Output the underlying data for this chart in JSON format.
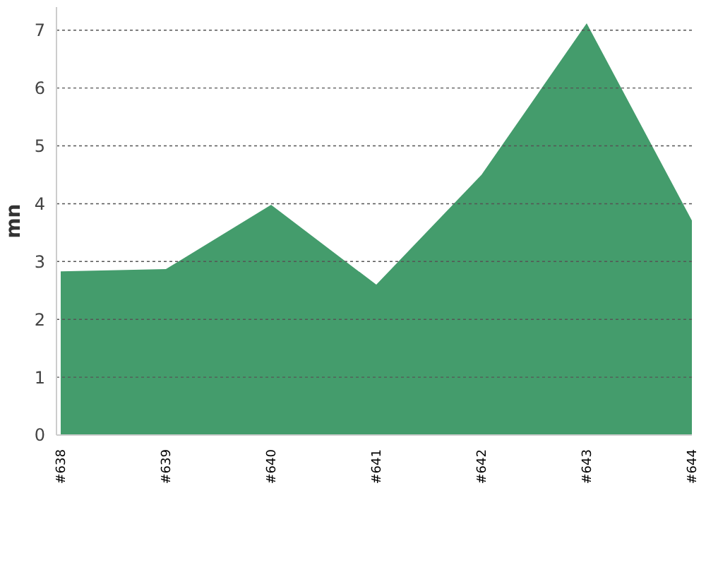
{
  "chart_data": {
    "type": "area",
    "ylabel": "mn",
    "categories": [
      "#638",
      "#639",
      "#640",
      "#641",
      "#642",
      "#643",
      "#644"
    ],
    "series": [
      {
        "color": "#449c6c",
        "values": [
          2.83,
          2.87,
          3.98,
          2.6,
          4.5,
          7.12,
          3.71
        ]
      }
    ],
    "ylim": [
      0,
      7.4
    ],
    "yticks": [
      0,
      1,
      2,
      3,
      4,
      5,
      6,
      7
    ],
    "grid": "y"
  }
}
